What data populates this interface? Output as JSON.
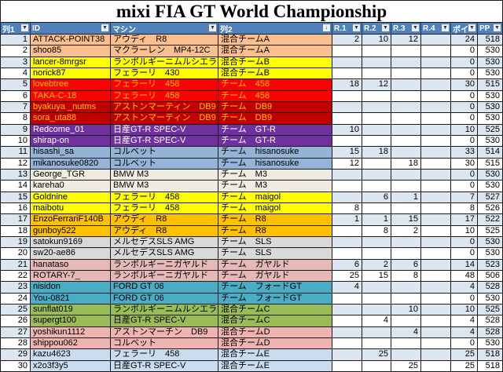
{
  "title": "mixi FIA GT World Championship",
  "colors": {
    "header_bg": "#4f81bd",
    "header_text": "#ffffff",
    "band": "#dce6f1",
    "band_alt": "#ffffff"
  },
  "columns": [
    {
      "label": "列1",
      "icon": "filter-dropdown-icon"
    },
    {
      "label": "ID",
      "icon": "filter-dropdown-icon"
    },
    {
      "label": "マシン",
      "icon": "filter-dropdown-icon"
    },
    {
      "label": "列2",
      "icon": "filter-sort-icon"
    },
    {
      "label": "R.1",
      "icon": "filter-dropdown-icon"
    },
    {
      "label": "R.2",
      "icon": "filter-dropdown-icon"
    },
    {
      "label": "R.3",
      "icon": "filter-dropdown-icon"
    },
    {
      "label": "R.4",
      "icon": "filter-dropdown-icon"
    },
    {
      "label": "ポイ",
      "icon": "filter-dropdown-icon"
    },
    {
      "label": "PP",
      "icon": "filter-dropdown-icon"
    }
  ],
  "icon_glyphs": {
    "filter-dropdown-icon": "▼",
    "filter-sort-icon": "↓"
  },
  "rows": [
    {
      "num": "1",
      "id": "ATTACK-POINT38",
      "machine": "アウディ　R8",
      "team": "混合チームA",
      "r1": "2",
      "r2": "10",
      "r3": "12",
      "r4": "",
      "poi": "24",
      "pp": "518",
      "fill": "#fabf8f",
      "text": "#000000"
    },
    {
      "num": "2",
      "id": "shoo85",
      "machine": "マクラーレン　MP4-12C",
      "team": "混合チームA",
      "r1": "",
      "r2": "",
      "r3": "",
      "r4": "",
      "poi": "0",
      "pp": "530",
      "fill": "#fabf8f",
      "text": "#000000"
    },
    {
      "num": "3",
      "id": "lancer-8mrgsr",
      "machine": "ランボルギーニムルシエラゴ",
      "team": "混合チームB",
      "r1": "",
      "r2": "",
      "r3": "",
      "r4": "",
      "poi": "0",
      "pp": "530",
      "fill": "#ffff00",
      "text": "#000000"
    },
    {
      "num": "4",
      "id": "norick87",
      "machine": "フェラーリ　430",
      "team": "混合チームB",
      "r1": "",
      "r2": "",
      "r3": "",
      "r4": "",
      "poi": "0",
      "pp": "530",
      "fill": "#ffff00",
      "text": "#000000"
    },
    {
      "num": "5",
      "id": "lovebtree",
      "machine": "フェラーリ　458",
      "team": "チーム　458",
      "r1": "18",
      "r2": "12",
      "r3": "",
      "r4": "",
      "poi": "30",
      "pp": "515",
      "fill": "#ff0000",
      "text": "#ffc000"
    },
    {
      "num": "6",
      "id": "TAKA-C-18",
      "machine": "フェラーリ　458",
      "team": "チーム　458",
      "r1": "",
      "r2": "",
      "r3": "",
      "r4": "",
      "poi": "0",
      "pp": "530",
      "fill": "#ff0000",
      "text": "#ffc000"
    },
    {
      "num": "7",
      "id": "byakuya _nutms",
      "machine": "アストンマーティン　DB9",
      "team": "チーム　DB9",
      "r1": "",
      "r2": "",
      "r3": "",
      "r4": "",
      "poi": "0",
      "pp": "530",
      "fill": "#c00000",
      "text": "#ffc000"
    },
    {
      "num": "8",
      "id": "sora_uta88",
      "machine": "アストンマーティン　DB9",
      "team": "チーム　DB9",
      "r1": "",
      "r2": "",
      "r3": "",
      "r4": "",
      "poi": "0",
      "pp": "530",
      "fill": "#c00000",
      "text": "#ffc000"
    },
    {
      "num": "9",
      "id": "Redcome_01",
      "machine": "日産GT-R SPEC-V",
      "team": "チーム　GT-R",
      "r1": "10",
      "r2": "",
      "r3": "",
      "r4": "",
      "poi": "10",
      "pp": "525",
      "fill": "#7030a0",
      "text": "#ffffff"
    },
    {
      "num": "10",
      "id": "shirap-on",
      "machine": "日産GT-R SPEC-V",
      "team": "チーム　GT-R",
      "r1": "",
      "r2": "",
      "r3": "",
      "r4": "",
      "poi": "0",
      "pp": "530",
      "fill": "#7030a0",
      "text": "#ffffff"
    },
    {
      "num": "11",
      "id": "hisashi_sa",
      "machine": "コルベット",
      "team": "チーム　hisanosuke",
      "r1": "15",
      "r2": "18",
      "r3": "",
      "r4": "",
      "poi": "33",
      "pp": "514",
      "fill": "#95b3d7",
      "text": "#000000"
    },
    {
      "num": "12",
      "id": "mikanosuke0820",
      "machine": "コルベット",
      "team": "チーム　hisanosuke",
      "r1": "12",
      "r2": "",
      "r3": "18",
      "r4": "",
      "poi": "30",
      "pp": "515",
      "fill": "#95b3d7",
      "text": "#000000"
    },
    {
      "num": "13",
      "id": "George_TGR",
      "machine": "BMW M3",
      "team": "チーム　M3",
      "r1": "",
      "r2": "",
      "r3": "",
      "r4": "",
      "poi": "0",
      "pp": "530",
      "fill": "#eeece1",
      "text": "#000000"
    },
    {
      "num": "14",
      "id": "kareha0",
      "machine": "BMW M3",
      "team": "チーム　M3",
      "r1": "",
      "r2": "",
      "r3": "",
      "r4": "",
      "poi": "0",
      "pp": "530",
      "fill": "#eeece1",
      "text": "#000000"
    },
    {
      "num": "15",
      "id": "Goldnine",
      "machine": "フェラーリ　458",
      "team": "チーム　maigol",
      "r1": "",
      "r2": "6",
      "r3": "1",
      "r4": "",
      "poi": "7",
      "pp": "527",
      "fill": "#ffff00",
      "text": "#000000"
    },
    {
      "num": "16",
      "id": "maibotu",
      "machine": "フェラーリ　458",
      "team": "チーム　maigol",
      "r1": "8",
      "r2": "",
      "r3": "",
      "r4": "",
      "poi": "8",
      "pp": "526",
      "fill": "#ffff00",
      "text": "#000000"
    },
    {
      "num": "17",
      "id": "EnzoFerrariF140B",
      "machine": "アウディ　R8",
      "team": "チーム　R8",
      "r1": "1",
      "r2": "1",
      "r3": "15",
      "r4": "",
      "poi": "17",
      "pp": "522",
      "fill": "#ffc000",
      "text": "#000000"
    },
    {
      "num": "18",
      "id": "gunboy522",
      "machine": "アウディ　R8",
      "team": "チーム　R8",
      "r1": "",
      "r2": "8",
      "r3": "2",
      "r4": "",
      "poi": "10",
      "pp": "525",
      "fill": "#ffc000",
      "text": "#000000"
    },
    {
      "num": "19",
      "id": "satokun9169",
      "machine": "メルセデスSLS AMG",
      "team": "チーム　SLS",
      "r1": "",
      "r2": "",
      "r3": "",
      "r4": "",
      "poi": "0",
      "pp": "530",
      "fill": "#d9d9d9",
      "text": "#000000"
    },
    {
      "num": "20",
      "id": "sw20-ae86",
      "machine": "メルセデスSLS AMG",
      "team": "チーム　SLS",
      "r1": "",
      "r2": "",
      "r3": "",
      "r4": "",
      "poi": "0",
      "pp": "530",
      "fill": "#d9d9d9",
      "text": "#000000"
    },
    {
      "num": "21",
      "id": "hanataso",
      "machine": "ランボルギーニガヤルド",
      "team": "チーム　ガヤルド",
      "r1": "6",
      "r2": "2",
      "r3": "6",
      "r4": "",
      "poi": "14",
      "pp": "523",
      "fill": "#e6b9b8",
      "text": "#000000"
    },
    {
      "num": "22",
      "id": "ROTARY-7_",
      "machine": "ランボルギーニガヤルド",
      "team": "チーム　ガヤルド",
      "r1": "25",
      "r2": "15",
      "r3": "8",
      "r4": "",
      "poi": "48",
      "pp": "506",
      "fill": "#e6b9b8",
      "text": "#000000"
    },
    {
      "num": "23",
      "id": "nisidon",
      "machine": "FORD GT 06",
      "team": "チーム　フォードGT",
      "r1": "4",
      "r2": "",
      "r3": "",
      "r4": "",
      "poi": "4",
      "pp": "528",
      "fill": "#4bacc6",
      "text": "#000000"
    },
    {
      "num": "24",
      "id": "You-0821",
      "machine": "FORD GT 06",
      "team": "チーム　フォードGT",
      "r1": "",
      "r2": "",
      "r3": "",
      "r4": "",
      "poi": "0",
      "pp": "530",
      "fill": "#4bacc6",
      "text": "#000000"
    },
    {
      "num": "25",
      "id": "sunflat019",
      "machine": "ランボルギーニムルシエラゴ",
      "team": "混合チームC",
      "r1": "",
      "r2": "",
      "r3": "10",
      "r4": "",
      "poi": "10",
      "pp": "525",
      "fill": "#9bbb59",
      "text": "#000000"
    },
    {
      "num": "26",
      "id": "supergt100",
      "machine": "日産GT-R SPEC-V",
      "team": "混合チームC",
      "r1": "",
      "r2": "4",
      "r3": "",
      "r4": "",
      "poi": "4",
      "pp": "528",
      "fill": "#9bbb59",
      "text": "#000000"
    },
    {
      "num": "27",
      "id": "yoshikun1112",
      "machine": "アストンマーチン　DB9",
      "team": "混合チームD",
      "r1": "",
      "r2": "",
      "r3": "4",
      "r4": "",
      "poi": "4",
      "pp": "528",
      "fill": "#efb4b0",
      "text": "#000000"
    },
    {
      "num": "28",
      "id": "shippou062",
      "machine": "コルベット",
      "team": "混合チームD",
      "r1": "",
      "r2": "",
      "r3": "",
      "r4": "",
      "poi": "0",
      "pp": "530",
      "fill": "#efb4b0",
      "text": "#000000"
    },
    {
      "num": "29",
      "id": "kazu4623",
      "machine": "フェラーリ　458",
      "team": "混合チームE",
      "r1": "",
      "r2": "25",
      "r3": "",
      "r4": "",
      "poi": "25",
      "pp": "518",
      "fill": "#c9dcf0",
      "text": "#000000"
    },
    {
      "num": "30",
      "id": "x2o3f3y5",
      "machine": "日産GT-R SPEC-V",
      "team": "混合チームE",
      "r1": "",
      "r2": "",
      "r3": "25",
      "r4": "",
      "poi": "25",
      "pp": "518",
      "fill": "#c9dcf0",
      "text": "#000000"
    }
  ]
}
